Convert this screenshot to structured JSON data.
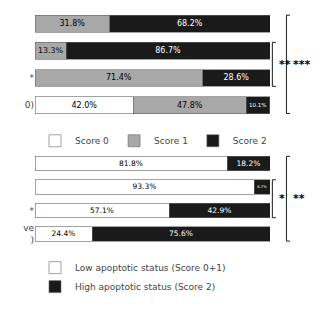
{
  "chart_data": [
    {
      "type": "bar",
      "orientation": "horizontal",
      "stacked": true,
      "categories": [
        null,
        null,
        "*",
        "0)"
      ],
      "series": [
        {
          "name": "Score 0",
          "color": "#ffffff",
          "values": [
            0.0,
            0.0,
            0.0,
            42.0
          ],
          "value_labels": [
            null,
            null,
            null,
            "42.0%"
          ]
        },
        {
          "name": "Score 1",
          "color": "#a8a8a8",
          "values": [
            31.8,
            13.3,
            71.4,
            47.8
          ],
          "value_labels": [
            "31.8%",
            "13.3%",
            "71.4%",
            "47.8%"
          ]
        },
        {
          "name": "Score 2",
          "color": "#1a1a1a",
          "values": [
            68.2,
            86.7,
            28.6,
            10.1
          ],
          "value_labels": [
            "68.2%",
            "86.7%",
            "28.6%",
            "10.1%"
          ]
        }
      ],
      "xlim": [
        0,
        100
      ],
      "data_labels": true,
      "tick_labels": "y",
      "grid": false,
      "legend": "bottom",
      "annotations": [
        {
          "text": "**",
          "span": [
            1,
            2
          ]
        },
        {
          "text": "***",
          "span": [
            0,
            3
          ]
        }
      ]
    },
    {
      "type": "bar",
      "orientation": "horizontal",
      "stacked": true,
      "categories": [
        null,
        null,
        "*",
        "ve\n)"
      ],
      "series": [
        {
          "name": "Low apoptotic status (Score 0+1)",
          "color": "#ffffff",
          "values": [
            81.8,
            93.3,
            57.1,
            24.4
          ],
          "value_labels": [
            "81.8%",
            "93.3%",
            "57.1%",
            "24.4%"
          ]
        },
        {
          "name": "High apoptotic status (Score 2)",
          "color": "#1a1a1a",
          "values": [
            18.2,
            6.7,
            42.9,
            75.6
          ],
          "value_labels": [
            "18.2%",
            "6.7%",
            "42.9%",
            "75.6%"
          ]
        }
      ],
      "xlim": [
        0,
        100
      ],
      "data_labels": true,
      "tick_labels": "y",
      "grid": false,
      "legend": "bottom",
      "annotations": [
        {
          "text": "*",
          "span": [
            1,
            2
          ]
        },
        {
          "text": "**",
          "span": [
            0,
            3
          ]
        }
      ]
    }
  ]
}
